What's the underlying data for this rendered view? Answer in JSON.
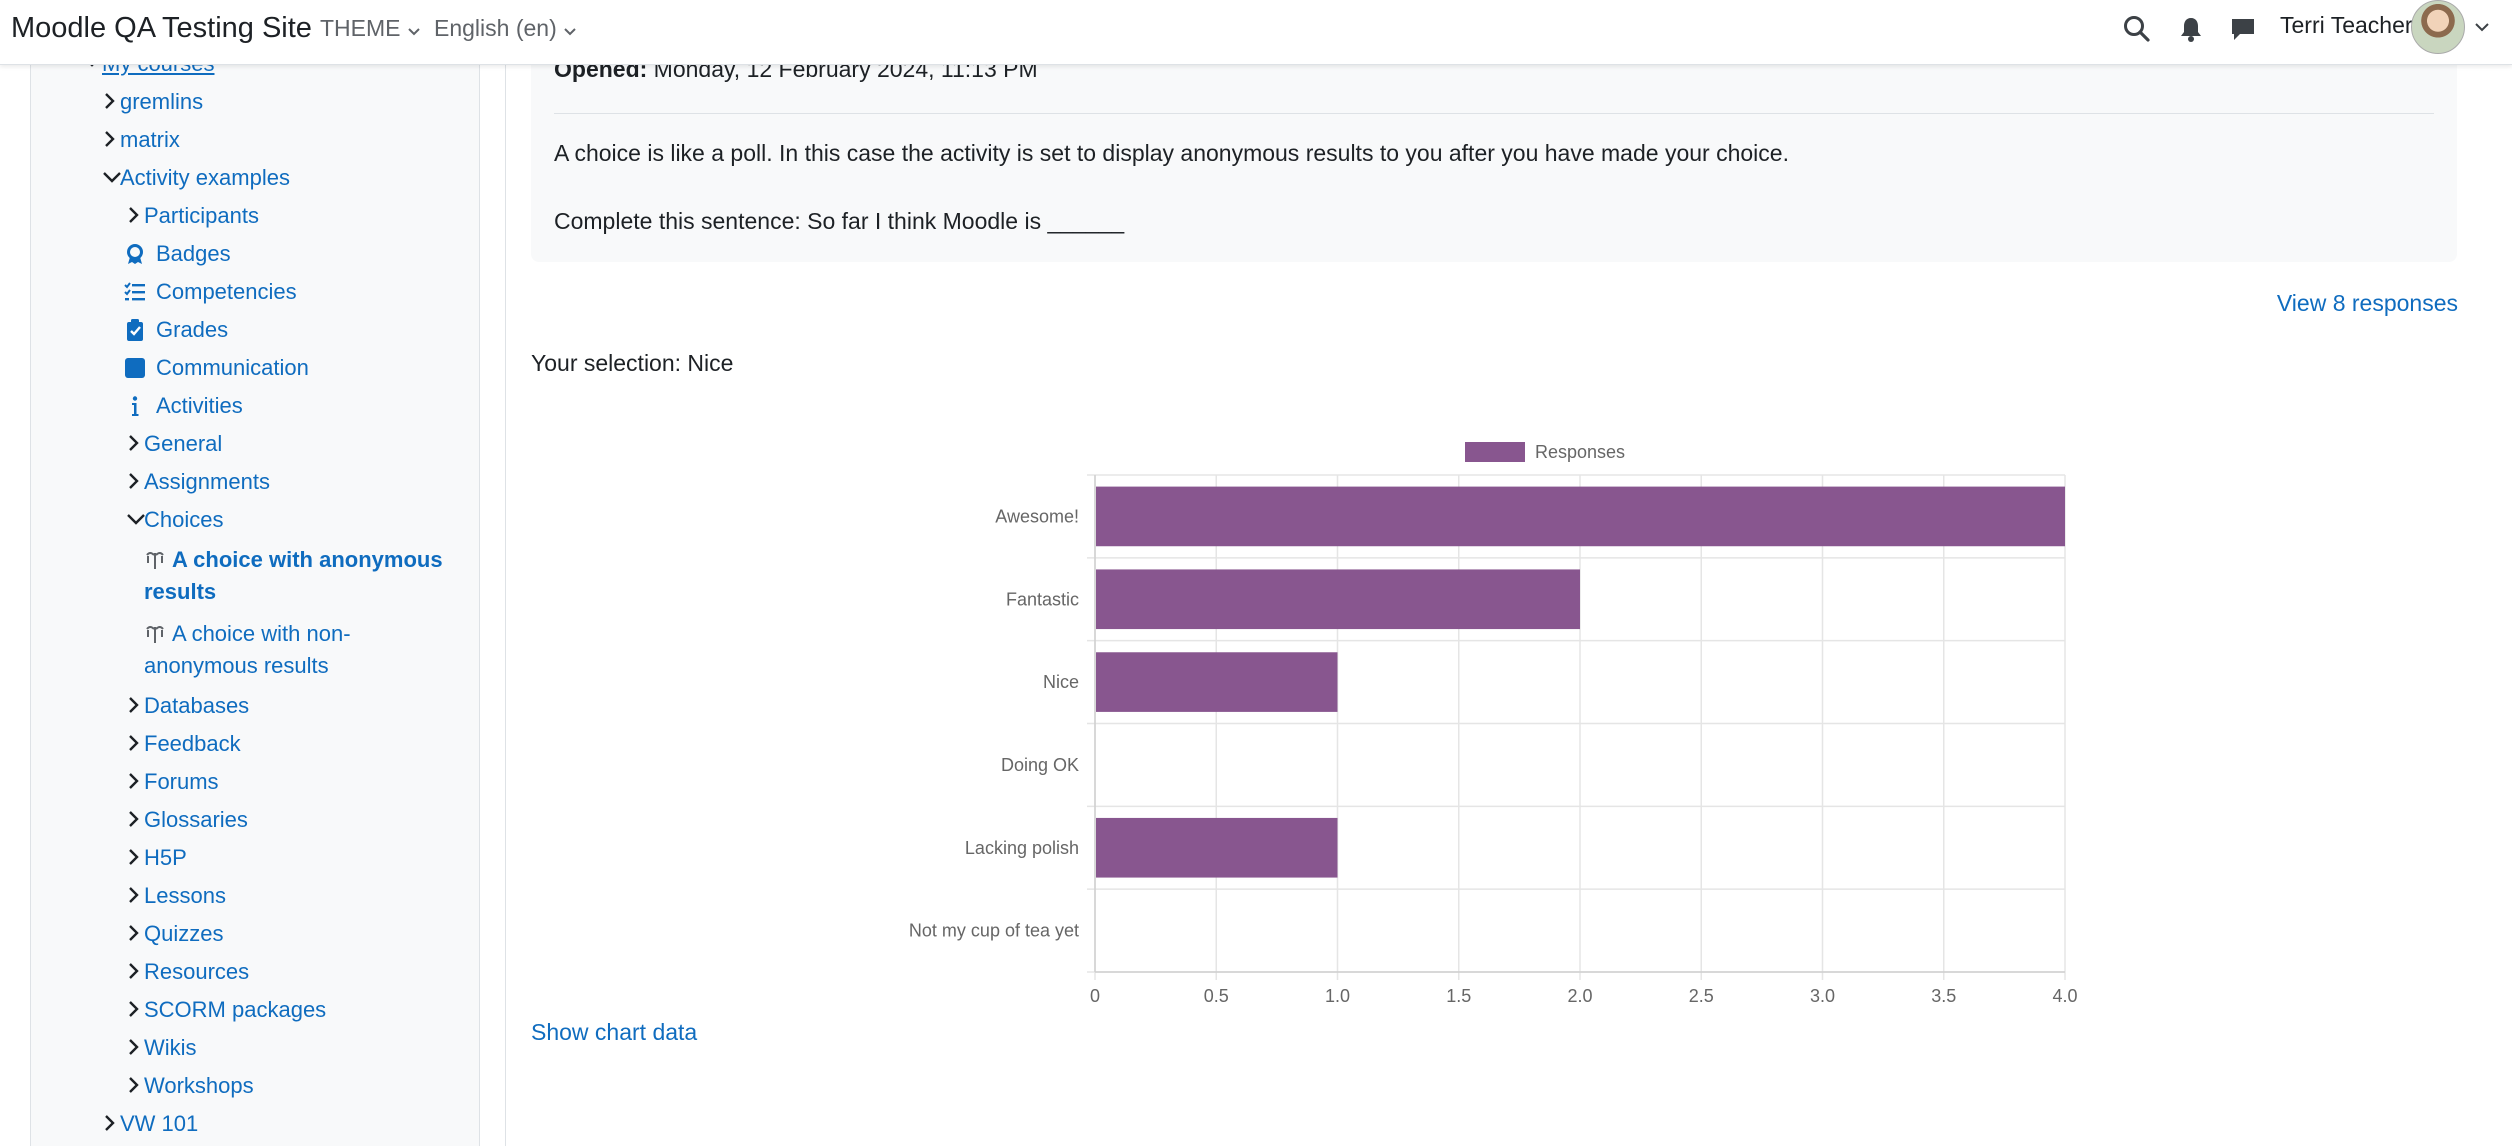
{
  "navbar": {
    "site_name": "Moodle QA Testing Site",
    "theme_label": "THEME",
    "language_label": "English (en)",
    "user_name": "Terri Teacher",
    "icons": [
      "search-icon",
      "bell-icon",
      "chat-icon",
      "chevron-down-icon"
    ]
  },
  "drawer": {
    "items": [
      {
        "label": "My courses",
        "icon": "chevron-down-icon"
      },
      {
        "label": "gremlins",
        "icon": "chevron-right-icon"
      },
      {
        "label": "matrix",
        "icon": "chevron-right-icon"
      },
      {
        "label": "Activity examples",
        "icon": "chevron-down-icon"
      },
      {
        "label": "Participants",
        "icon": "chevron-right-icon"
      },
      {
        "label": "Badges",
        "icon": "badge-icon"
      },
      {
        "label": "Competencies",
        "icon": "checklist-icon"
      },
      {
        "label": "Grades",
        "icon": "clipboard-check-icon"
      },
      {
        "label": "Communication",
        "icon": "square-icon"
      },
      {
        "label": "Activities",
        "icon": "info-icon"
      },
      {
        "label": "General",
        "icon": "chevron-right-icon"
      },
      {
        "label": "Assignments",
        "icon": "chevron-right-icon"
      },
      {
        "label": "Choices",
        "icon": "chevron-down-icon"
      },
      {
        "label": "A choice with anonymous results",
        "icon": "choice-icon"
      },
      {
        "label": "A choice with non-anonymous results",
        "icon": "choice-icon"
      },
      {
        "label": "Databases",
        "icon": "chevron-right-icon"
      },
      {
        "label": "Feedback",
        "icon": "chevron-right-icon"
      },
      {
        "label": "Forums",
        "icon": "chevron-right-icon"
      },
      {
        "label": "Glossaries",
        "icon": "chevron-right-icon"
      },
      {
        "label": "H5P",
        "icon": "chevron-right-icon"
      },
      {
        "label": "Lessons",
        "icon": "chevron-right-icon"
      },
      {
        "label": "Quizzes",
        "icon": "chevron-right-icon"
      },
      {
        "label": "Resources",
        "icon": "chevron-right-icon"
      },
      {
        "label": "SCORM packages",
        "icon": "chevron-right-icon"
      },
      {
        "label": "Wikis",
        "icon": "chevron-right-icon"
      },
      {
        "label": "Workshops",
        "icon": "chevron-right-icon"
      },
      {
        "label": "VW 101",
        "icon": "chevron-right-icon"
      }
    ]
  },
  "main": {
    "opened_label": "Opened:",
    "opened_value": "Monday, 12 February 2024, 11:13 PM",
    "intro_p1": "A choice is like a poll. In this case the activity is set to display anonymous results to you after you have made your choice.",
    "intro_p2": "Complete this sentence: So far I think Moodle is ______",
    "view_responses": "View 8 responses",
    "your_selection": "Your selection: Nice",
    "show_chart_data": "Show chart data"
  },
  "chart_data": {
    "type": "bar",
    "orientation": "horizontal",
    "categories": [
      "Awesome!",
      "Fantastic",
      "Nice",
      "Doing OK",
      "Lacking polish",
      "Not my cup of tea yet"
    ],
    "series": [
      {
        "name": "Responses",
        "values": [
          4,
          2,
          1,
          0,
          1,
          0
        ],
        "color": "#88568f"
      }
    ],
    "xlim": [
      0,
      4
    ],
    "xticks": [
      "0",
      "0.5",
      "1.0",
      "1.5",
      "2.0",
      "2.5",
      "3.0",
      "3.5",
      "4.0"
    ],
    "grid": true,
    "legend_position": "top"
  }
}
